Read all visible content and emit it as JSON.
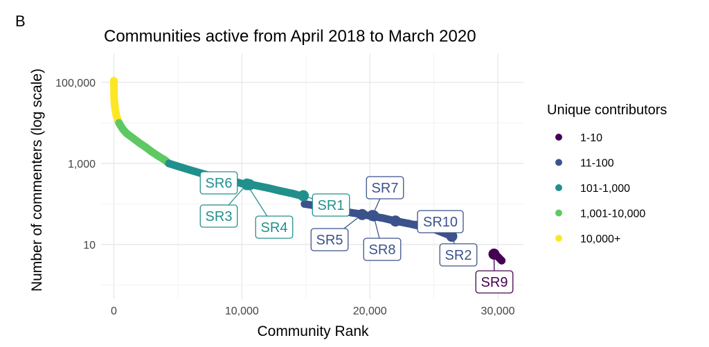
{
  "panel_letter": "B",
  "chart_data": {
    "type": "scatter",
    "title": "Communities active from April 2018 to March 2020",
    "xlabel": "Community Rank",
    "ylabel": "Number of commenters (log scale)",
    "y_scale": "log10",
    "xlim": [
      -1000,
      32000
    ],
    "ylim_log10": [
      -0.35,
      5.7
    ],
    "x_ticks": [
      0,
      10000,
      20000,
      30000
    ],
    "x_tick_labels": [
      "0",
      "10,000",
      "20,000",
      "30,000"
    ],
    "y_ticks": [
      10,
      1000,
      100000
    ],
    "y_tick_labels": [
      "10",
      "1,000",
      "100,000"
    ],
    "grid": true,
    "legend": {
      "title": "Unique contributors",
      "placement": "right",
      "entries": [
        {
          "label": "1-10",
          "color": "#440154"
        },
        {
          "label": "11-100",
          "color": "#3b528b"
        },
        {
          "label": "101-1,000",
          "color": "#21908c"
        },
        {
          "label": "1,001-10,000",
          "color": "#5ec962"
        },
        {
          "label": "10,000+",
          "color": "#fde725"
        }
      ]
    },
    "series": [
      {
        "group": "10,000+",
        "color": "#fde725",
        "points": [
          [
            0,
            110000
          ],
          [
            20,
            40000
          ],
          [
            50,
            30000
          ],
          [
            100,
            22000
          ],
          [
            200,
            15000
          ],
          [
            300,
            12000
          ],
          [
            400,
            10000
          ]
        ]
      },
      {
        "group": "1,001-10,000",
        "color": "#5ec962",
        "points": [
          [
            400,
            10000
          ],
          [
            700,
            7000
          ],
          [
            1000,
            5500
          ],
          [
            1500,
            4200
          ],
          [
            2000,
            3200
          ],
          [
            2500,
            2500
          ],
          [
            3000,
            1900
          ],
          [
            3500,
            1500
          ],
          [
            4000,
            1200
          ],
          [
            4300,
            1000
          ]
        ]
      },
      {
        "group": "101-1,000",
        "color": "#21908c",
        "points": [
          [
            4300,
            1000
          ],
          [
            5000,
            850
          ],
          [
            6000,
            680
          ],
          [
            7000,
            550
          ],
          [
            8000,
            460
          ],
          [
            9000,
            390
          ],
          [
            10000,
            320
          ],
          [
            10500,
            310
          ],
          [
            11000,
            290
          ],
          [
            12000,
            250
          ],
          [
            13000,
            210
          ],
          [
            14000,
            180
          ],
          [
            14900,
            150
          ]
        ]
      },
      {
        "group": "11-100",
        "color": "#3b528b",
        "points": [
          [
            14900,
            100
          ],
          [
            16000,
            88
          ],
          [
            17000,
            75
          ],
          [
            18000,
            65
          ],
          [
            19000,
            58
          ],
          [
            20000,
            51
          ],
          [
            21000,
            45
          ],
          [
            22000,
            38
          ],
          [
            23000,
            33
          ],
          [
            24000,
            28
          ],
          [
            25000,
            24
          ],
          [
            26000,
            18
          ],
          [
            26500,
            16
          ]
        ]
      },
      {
        "group": "1-10",
        "color": "#440154",
        "points": [
          [
            29700,
            5.8
          ],
          [
            30000,
            5
          ],
          [
            30300,
            4
          ]
        ]
      }
    ],
    "highlighted": [
      {
        "label": "SR1",
        "x": 14800,
        "y": 160
      },
      {
        "label": "SR2",
        "x": 26400,
        "y": 16
      },
      {
        "label": "SR3",
        "x": 10400,
        "y": 310
      },
      {
        "label": "SR4",
        "x": 10400,
        "y": 300
      },
      {
        "label": "SR5",
        "x": 19400,
        "y": 55
      },
      {
        "label": "SR6",
        "x": 10600,
        "y": 300
      },
      {
        "label": "SR7",
        "x": 20200,
        "y": 52
      },
      {
        "label": "SR8",
        "x": 20300,
        "y": 51
      },
      {
        "label": "SR9",
        "x": 29700,
        "y": 5.8
      },
      {
        "label": "SR10",
        "x": 22000,
        "y": 38
      }
    ]
  }
}
